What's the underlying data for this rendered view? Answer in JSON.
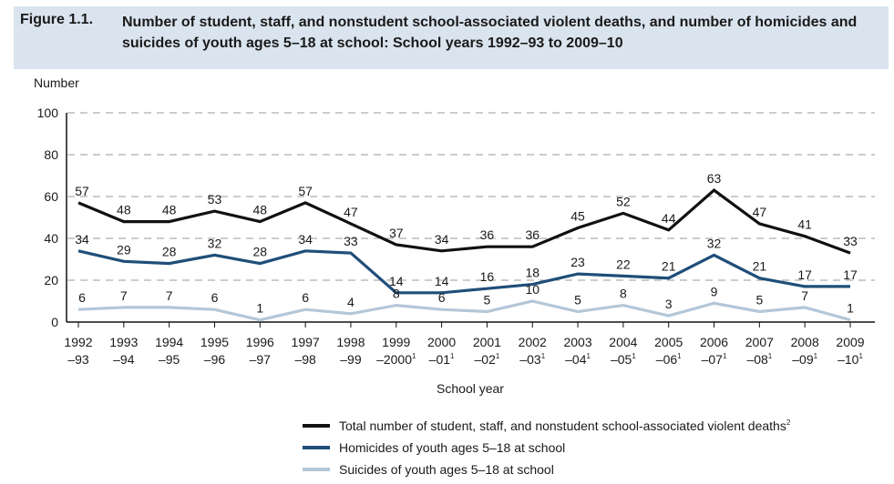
{
  "header": {
    "figure_label": "Figure 1.1.",
    "title": "Number of student, staff, and nonstudent school-associated violent deaths, and number of homicides and suicides of youth ages 5–18 at school: School years 1992–93 to 2009–10"
  },
  "chart_data": {
    "type": "line",
    "title": "Number of student, staff, and nonstudent school-associated violent deaths, and number of homicides and suicides of youth ages 5–18 at school: School years 1992–93 to 2009–10",
    "xlabel": "School year",
    "ylabel": "Number",
    "ylim": [
      0,
      100
    ],
    "yticks": [
      0,
      20,
      40,
      60,
      80,
      100
    ],
    "grid": "horizontal dashed",
    "legend_position": "bottom",
    "categories": [
      {
        "top": "1992",
        "bottom": "–93",
        "sup": ""
      },
      {
        "top": "1993",
        "bottom": "–94",
        "sup": ""
      },
      {
        "top": "1994",
        "bottom": "–95",
        "sup": ""
      },
      {
        "top": "1995",
        "bottom": "–96",
        "sup": ""
      },
      {
        "top": "1996",
        "bottom": "–97",
        "sup": ""
      },
      {
        "top": "1997",
        "bottom": "–98",
        "sup": ""
      },
      {
        "top": "1998",
        "bottom": "–99",
        "sup": ""
      },
      {
        "top": "1999",
        "bottom": "–2000",
        "sup": "1"
      },
      {
        "top": "2000",
        "bottom": "–01",
        "sup": "1"
      },
      {
        "top": "2001",
        "bottom": "–02",
        "sup": "1"
      },
      {
        "top": "2002",
        "bottom": "–03",
        "sup": "1"
      },
      {
        "top": "2003",
        "bottom": "–04",
        "sup": "1"
      },
      {
        "top": "2004",
        "bottom": "–05",
        "sup": "1"
      },
      {
        "top": "2005",
        "bottom": "–06",
        "sup": "1"
      },
      {
        "top": "2006",
        "bottom": "–07",
        "sup": "1"
      },
      {
        "top": "2007",
        "bottom": "–08",
        "sup": "1"
      },
      {
        "top": "2008",
        "bottom": "–09",
        "sup": "1"
      },
      {
        "top": "2009",
        "bottom": "–10",
        "sup": "1"
      }
    ],
    "series": [
      {
        "name": "Total number of student, staff, and nonstudent school-associated violent deaths",
        "sup": "2",
        "color": "#111111",
        "values": [
          57,
          48,
          48,
          53,
          48,
          57,
          47,
          37,
          34,
          36,
          36,
          45,
          52,
          44,
          63,
          47,
          41,
          33
        ]
      },
      {
        "name": "Homicides of youth ages 5–18 at school",
        "sup": "",
        "color": "#1f4e79",
        "values": [
          34,
          29,
          28,
          32,
          28,
          34,
          33,
          14,
          14,
          16,
          18,
          23,
          22,
          21,
          32,
          21,
          17,
          17
        ]
      },
      {
        "name": "Suicides of youth ages 5–18 at school",
        "sup": "",
        "color": "#b3c7d8",
        "values": [
          6,
          7,
          7,
          6,
          1,
          6,
          4,
          8,
          6,
          5,
          10,
          5,
          8,
          3,
          9,
          5,
          7,
          1
        ]
      }
    ]
  }
}
